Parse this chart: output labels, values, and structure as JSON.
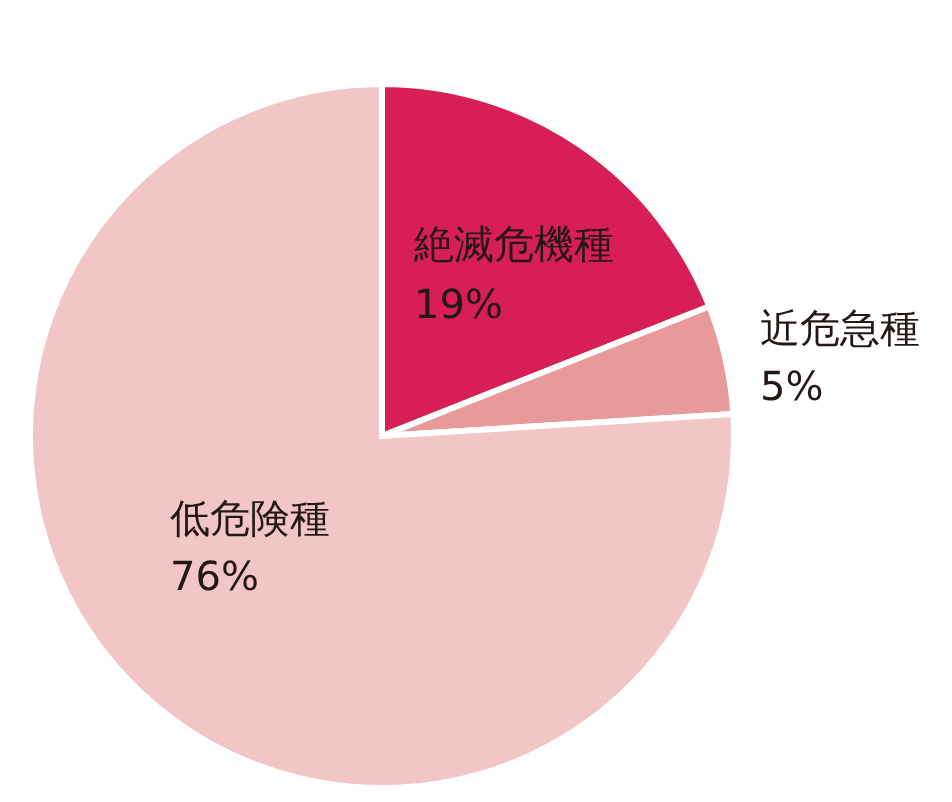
{
  "chart_data": {
    "type": "pie",
    "categories": [
      "絶滅危機種",
      "近危急種",
      "低危険種"
    ],
    "values": [
      19,
      5,
      76
    ],
    "colors": [
      "#d81e57",
      "#e8999a",
      "#f2c5c6"
    ],
    "value_labels": [
      "19%",
      "5%",
      "76%"
    ]
  }
}
